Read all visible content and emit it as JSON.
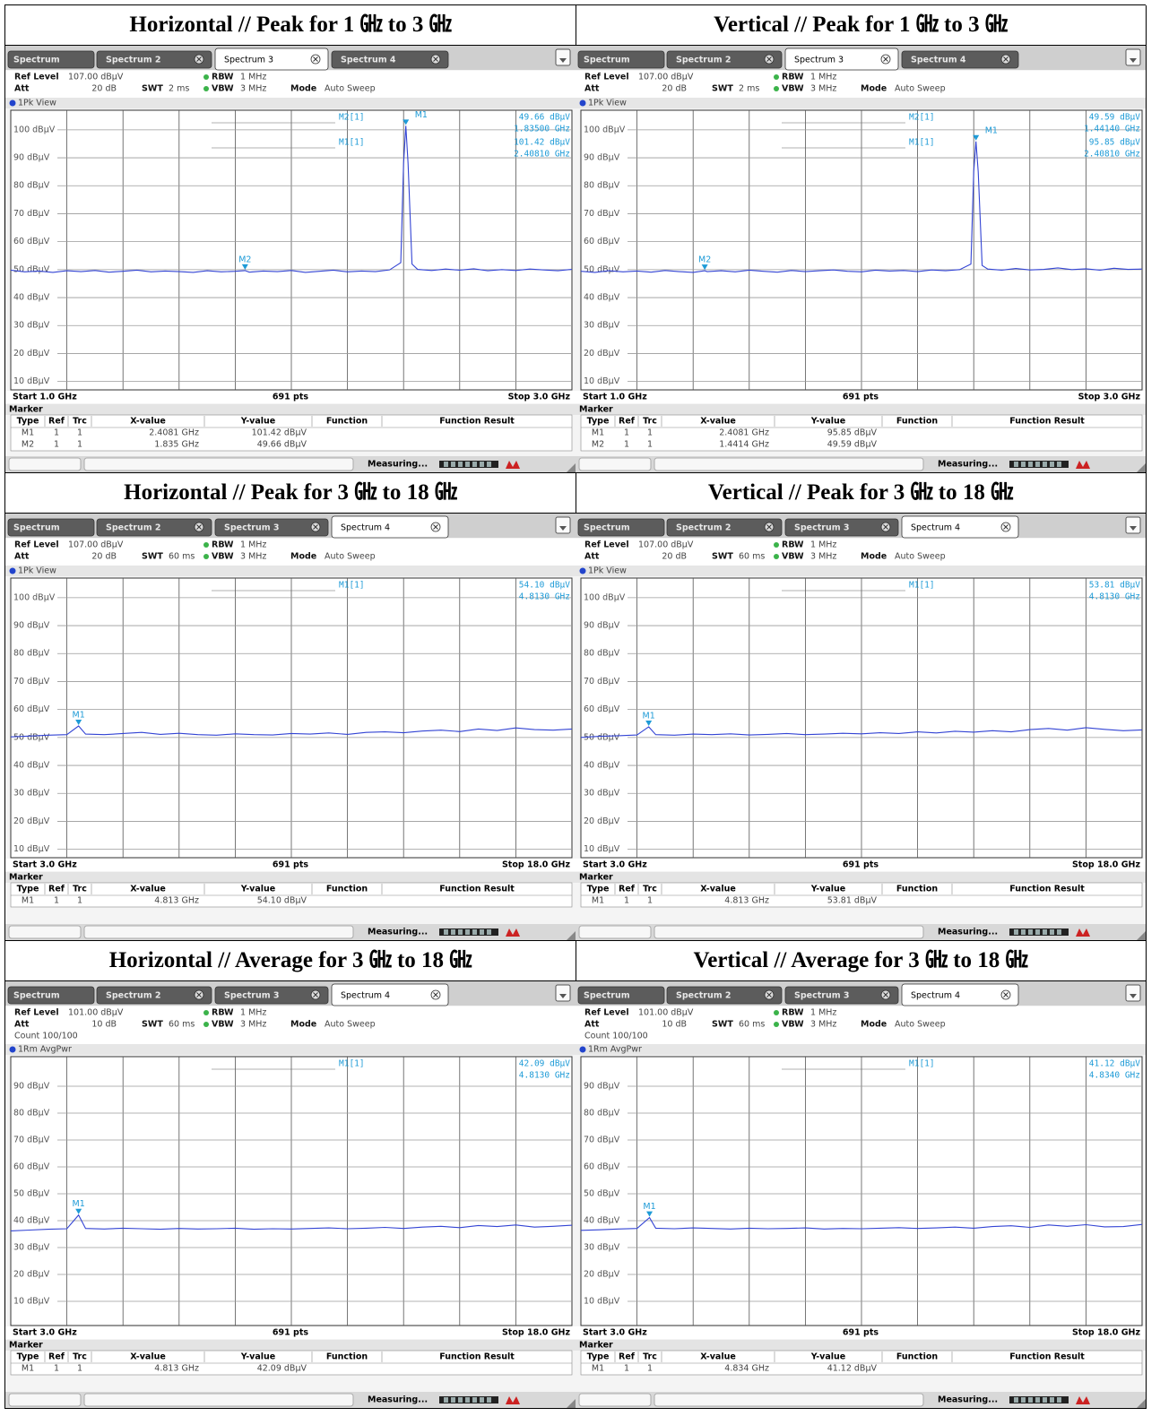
{
  "ui": {
    "tabs": [
      "Spectrum",
      "Spectrum 2",
      "Spectrum 3",
      "Spectrum 4"
    ],
    "ref_level": "Ref Level",
    "att": "Att",
    "swt": "SWT",
    "rbw": "RBW",
    "vbw": "VBW",
    "mode": "Mode",
    "marker": "Marker",
    "table_headers": [
      "Type",
      "Ref",
      "Trc",
      "X-value",
      "Y-value",
      "Function",
      "Function Result"
    ],
    "status": "Measuring..."
  },
  "chart_data": [
    {
      "type": "line",
      "title": "Horizontal // Peak for 1 ㎓ to 3 ㎓",
      "active_tab": 2,
      "ref_level": "107.00 dBµV",
      "att": "20 dB",
      "swt": "2 ms",
      "rbw": "1 MHz",
      "vbw": "3 MHz",
      "mode": "Auto Sweep",
      "trace_label": "1Pk View",
      "start_label": "Start 1.0 GHz",
      "points_label": "691 pts",
      "stop_label": "Stop 3.0 GHz",
      "xlim": [
        1,
        3
      ],
      "ylim": [
        7,
        107
      ],
      "yticks": [
        {
          "value": 100,
          "label": "100 dBµV"
        },
        {
          "value": 90,
          "label": "90 dBµV"
        },
        {
          "value": 80,
          "label": "80 dBµV"
        },
        {
          "value": 70,
          "label": "70 dBµV"
        },
        {
          "value": 60,
          "label": "60 dBµV"
        },
        {
          "value": 50,
          "label": "50 dBµV"
        },
        {
          "value": 40,
          "label": "40 dBµV"
        },
        {
          "value": 30,
          "label": "30 dBµV"
        },
        {
          "value": 20,
          "label": "20 dBµV"
        },
        {
          "value": 10,
          "label": "10 dBµV"
        }
      ],
      "color": "#3344d4",
      "x": [
        1.0,
        1.05,
        1.1,
        1.15,
        1.2,
        1.25,
        1.3,
        1.35,
        1.4,
        1.45,
        1.5,
        1.55,
        1.6,
        1.65,
        1.7,
        1.75,
        1.8,
        1.835,
        1.85,
        1.9,
        1.95,
        2.0,
        2.05,
        2.1,
        2.15,
        2.2,
        2.25,
        2.3,
        2.35,
        2.39,
        2.4,
        2.408,
        2.416,
        2.43,
        2.45,
        2.5,
        2.55,
        2.6,
        2.65,
        2.7,
        2.75,
        2.8,
        2.85,
        2.9,
        2.95,
        3.0
      ],
      "values": [
        49.8,
        49.2,
        49.5,
        49.0,
        49.6,
        49.3,
        49.7,
        49.1,
        49.4,
        49.8,
        49.2,
        49.5,
        49.3,
        49.0,
        49.6,
        49.2,
        49.4,
        49.66,
        49.1,
        49.5,
        49.3,
        49.7,
        49.0,
        49.4,
        49.8,
        49.2,
        49.5,
        49.3,
        49.9,
        52.5,
        88.0,
        101.42,
        88.0,
        52.0,
        50.1,
        49.7,
        50.2,
        49.8,
        50.3,
        49.6,
        50.0,
        49.7,
        50.2,
        49.9,
        49.6,
        50.1
      ],
      "markers": {
        "names": [
          "M1",
          "M2"
        ],
        "readout_names": [
          "M1[1]",
          "M2[1]"
        ],
        "x": [
          2.4081,
          1.835
        ],
        "values": [
          101.42,
          49.66
        ],
        "value_labels": [
          "101.42 dBµV",
          "49.66 dBµV"
        ],
        "x_labels": [
          "2.40810 GHz",
          "1.83500 GHz"
        ]
      },
      "marker_table": {
        "rows": [
          [
            "M1",
            "1",
            "1",
            "2.4081 GHz",
            "101.42 dBµV"
          ],
          [
            "M2",
            "1",
            "1",
            "1.835 GHz",
            "49.66 dBµV"
          ]
        ]
      }
    },
    {
      "type": "line",
      "title": "Vertical // Peak for 1 ㎓ to 3 ㎓",
      "active_tab": 2,
      "ref_level": "107.00 dBµV",
      "att": "20 dB",
      "swt": "2 ms",
      "rbw": "1 MHz",
      "vbw": "3 MHz",
      "mode": "Auto Sweep",
      "trace_label": "1Pk View",
      "start_label": "Start 1.0 GHz",
      "points_label": "691 pts",
      "stop_label": "Stop 3.0 GHz",
      "xlim": [
        1,
        3
      ],
      "ylim": [
        7,
        107
      ],
      "yticks": [
        {
          "value": 100,
          "label": "100 dBµV"
        },
        {
          "value": 90,
          "label": "90 dBµV"
        },
        {
          "value": 80,
          "label": "80 dBµV"
        },
        {
          "value": 70,
          "label": "70 dBµV"
        },
        {
          "value": 60,
          "label": "60 dBµV"
        },
        {
          "value": 50,
          "label": "50 dBµV"
        },
        {
          "value": 40,
          "label": "40 dBµV"
        },
        {
          "value": 30,
          "label": "30 dBµV"
        },
        {
          "value": 20,
          "label": "20 dBµV"
        },
        {
          "value": 10,
          "label": "10 dBµV"
        }
      ],
      "color": "#3344d4",
      "x": [
        1.0,
        1.05,
        1.1,
        1.15,
        1.2,
        1.25,
        1.3,
        1.35,
        1.4,
        1.4414,
        1.45,
        1.5,
        1.55,
        1.6,
        1.65,
        1.7,
        1.75,
        1.8,
        1.85,
        1.9,
        1.95,
        2.0,
        2.05,
        2.1,
        2.15,
        2.2,
        2.25,
        2.3,
        2.35,
        2.39,
        2.4,
        2.408,
        2.416,
        2.43,
        2.45,
        2.5,
        2.55,
        2.6,
        2.65,
        2.7,
        2.75,
        2.8,
        2.85,
        2.9,
        2.95,
        3.0
      ],
      "values": [
        49.4,
        49.0,
        49.6,
        49.2,
        49.5,
        49.1,
        49.7,
        49.3,
        49.0,
        49.59,
        49.3,
        49.6,
        49.2,
        49.8,
        49.4,
        49.1,
        49.7,
        49.3,
        49.6,
        49.9,
        49.4,
        49.2,
        49.8,
        49.5,
        49.7,
        49.3,
        49.9,
        49.6,
        50.0,
        52.0,
        85.0,
        95.85,
        85.0,
        51.5,
        50.2,
        49.8,
        50.4,
        49.9,
        50.1,
        50.6,
        50.0,
        50.3,
        49.8,
        50.5,
        50.1,
        50.2
      ],
      "markers": {
        "names": [
          "M1",
          "M2"
        ],
        "readout_names": [
          "M1[1]",
          "M2[1]"
        ],
        "x": [
          2.4081,
          1.4414
        ],
        "values": [
          95.85,
          49.59
        ],
        "value_labels": [
          "95.85 dBµV",
          "49.59 dBµV"
        ],
        "x_labels": [
          "2.40810 GHz",
          "1.44140 GHz"
        ]
      },
      "marker_table": {
        "rows": [
          [
            "M1",
            "1",
            "1",
            "2.4081 GHz",
            "95.85 dBµV"
          ],
          [
            "M2",
            "1",
            "1",
            "1.4414 GHz",
            "49.59 dBµV"
          ]
        ]
      }
    },
    {
      "type": "line",
      "title": "Horizontal // Peak for 3 ㎓ to 18 ㎓",
      "active_tab": 3,
      "ref_level": "107.00 dBµV",
      "att": "20 dB",
      "swt": "60 ms",
      "rbw": "1 MHz",
      "vbw": "3 MHz",
      "mode": "Auto Sweep",
      "trace_label": "1Pk View",
      "start_label": "Start 3.0 GHz",
      "points_label": "691 pts",
      "stop_label": "Stop 18.0 GHz",
      "xlim": [
        3,
        18
      ],
      "ylim": [
        7,
        107
      ],
      "yticks": [
        {
          "value": 100,
          "label": "100 dBµV"
        },
        {
          "value": 90,
          "label": "90 dBµV"
        },
        {
          "value": 80,
          "label": "80 dBµV"
        },
        {
          "value": 70,
          "label": "70 dBµV"
        },
        {
          "value": 60,
          "label": "60 dBµV"
        },
        {
          "value": 50,
          "label": "50 dBµV"
        },
        {
          "value": 40,
          "label": "40 dBµV"
        },
        {
          "value": 30,
          "label": "30 dBµV"
        },
        {
          "value": 20,
          "label": "20 dBµV"
        },
        {
          "value": 10,
          "label": "10 dBµV"
        }
      ],
      "color": "#3344d4",
      "x": [
        3,
        3.5,
        4,
        4.5,
        4.813,
        5,
        5.5,
        6,
        6.5,
        7,
        7.5,
        8,
        8.5,
        9,
        9.5,
        10,
        10.5,
        11,
        11.5,
        12,
        12.5,
        13,
        13.5,
        14,
        14.5,
        15,
        15.5,
        16,
        16.5,
        17,
        17.5,
        18
      ],
      "values": [
        50.2,
        50.5,
        50.8,
        51.0,
        54.1,
        51.2,
        51.0,
        51.4,
        51.8,
        51.1,
        51.5,
        51.0,
        50.8,
        51.3,
        51.0,
        50.9,
        51.4,
        51.2,
        51.6,
        51.1,
        51.8,
        52.0,
        51.7,
        52.3,
        52.6,
        52.1,
        53.0,
        52.5,
        53.4,
        52.8,
        52.6,
        53.0
      ],
      "markers": {
        "names": [
          "M1"
        ],
        "readout_names": [
          "M1[1]"
        ],
        "x": [
          4.813
        ],
        "values": [
          54.1
        ],
        "value_labels": [
          "54.10 dBµV"
        ],
        "x_labels": [
          "4.8130 GHz"
        ]
      },
      "marker_table": {
        "rows": [
          [
            "M1",
            "1",
            "1",
            "4.813 GHz",
            "54.10 dBµV"
          ]
        ]
      }
    },
    {
      "type": "line",
      "title": "Vertical // Peak for 3 ㎓ to 18 ㎓",
      "active_tab": 3,
      "ref_level": "107.00 dBµV",
      "att": "20 dB",
      "swt": "60 ms",
      "rbw": "1 MHz",
      "vbw": "3 MHz",
      "mode": "Auto Sweep",
      "trace_label": "1Pk View",
      "start_label": "Start 3.0 GHz",
      "points_label": "691 pts",
      "stop_label": "Stop 18.0 GHz",
      "xlim": [
        3,
        18
      ],
      "ylim": [
        7,
        107
      ],
      "yticks": [
        {
          "value": 100,
          "label": "100 dBµV"
        },
        {
          "value": 90,
          "label": "90 dBµV"
        },
        {
          "value": 80,
          "label": "80 dBµV"
        },
        {
          "value": 70,
          "label": "70 dBµV"
        },
        {
          "value": 60,
          "label": "60 dBµV"
        },
        {
          "value": 50,
          "label": "50 dBµV"
        },
        {
          "value": 40,
          "label": "40 dBµV"
        },
        {
          "value": 30,
          "label": "30 dBµV"
        },
        {
          "value": 20,
          "label": "20 dBµV"
        },
        {
          "value": 10,
          "label": "10 dBµV"
        }
      ],
      "color": "#3344d4",
      "x": [
        3,
        3.5,
        4,
        4.5,
        4.813,
        5,
        5.5,
        6,
        6.5,
        7,
        7.5,
        8,
        8.5,
        9,
        9.5,
        10,
        10.5,
        11,
        11.5,
        12,
        12.5,
        13,
        13.5,
        14,
        14.5,
        15,
        15.5,
        16,
        16.5,
        17,
        17.5,
        18
      ],
      "values": [
        50.0,
        50.4,
        50.6,
        50.9,
        53.81,
        51.0,
        50.8,
        51.2,
        51.0,
        51.3,
        50.9,
        51.1,
        51.4,
        51.0,
        51.2,
        51.5,
        51.3,
        51.7,
        51.4,
        52.0,
        51.6,
        52.2,
        51.9,
        52.4,
        52.0,
        52.8,
        53.2,
        52.6,
        53.5,
        52.9,
        52.4,
        52.7
      ],
      "markers": {
        "names": [
          "M1"
        ],
        "readout_names": [
          "M1[1]"
        ],
        "x": [
          4.813
        ],
        "values": [
          53.81
        ],
        "value_labels": [
          "53.81 dBµV"
        ],
        "x_labels": [
          "4.8130 GHz"
        ]
      },
      "marker_table": {
        "rows": [
          [
            "M1",
            "1",
            "1",
            "4.813 GHz",
            "53.81 dBµV"
          ]
        ]
      }
    },
    {
      "type": "line",
      "title": "Horizontal // Average for 3 ㎓ to 18 ㎓",
      "active_tab": 3,
      "ref_level": "101.00 dBµV",
      "att": "10 dB",
      "swt": "60 ms",
      "rbw": "1 MHz",
      "vbw": "3 MHz",
      "mode": "Auto Sweep",
      "count": "Count 100/100",
      "trace_label": "1Rm AvgPwr",
      "start_label": "Start 3.0 GHz",
      "points_label": "691 pts",
      "stop_label": "Stop 18.0 GHz",
      "xlim": [
        3,
        18
      ],
      "ylim": [
        1,
        101
      ],
      "yticks": [
        {
          "value": 90,
          "label": "90 dBµV"
        },
        {
          "value": 80,
          "label": "80 dBµV"
        },
        {
          "value": 70,
          "label": "70 dBµV"
        },
        {
          "value": 60,
          "label": "60 dBµV"
        },
        {
          "value": 50,
          "label": "50 dBµV"
        },
        {
          "value": 40,
          "label": "40 dBµV"
        },
        {
          "value": 30,
          "label": "30 dBµV"
        },
        {
          "value": 20,
          "label": "20 dBµV"
        },
        {
          "value": 10,
          "label": "10 dBµV"
        }
      ],
      "color": "#3344d4",
      "x": [
        3,
        3.5,
        4,
        4.5,
        4.813,
        5,
        5.5,
        6,
        6.5,
        7,
        7.5,
        8,
        8.5,
        9,
        9.5,
        10,
        10.5,
        11,
        11.5,
        12,
        12.5,
        13,
        13.5,
        14,
        14.5,
        15,
        15.5,
        16,
        16.5,
        17,
        17.5,
        18
      ],
      "values": [
        36.2,
        36.5,
        36.8,
        37.0,
        42.09,
        37.1,
        36.9,
        37.2,
        37.0,
        36.8,
        37.1,
        36.9,
        37.0,
        37.2,
        36.8,
        37.0,
        36.9,
        37.1,
        37.3,
        37.0,
        37.2,
        37.5,
        37.1,
        37.6,
        37.9,
        37.4,
        38.2,
        37.8,
        38.4,
        37.6,
        37.9,
        38.3
      ],
      "markers": {
        "names": [
          "M1"
        ],
        "readout_names": [
          "M1[1]"
        ],
        "x": [
          4.813
        ],
        "values": [
          42.09
        ],
        "value_labels": [
          "42.09 dBµV"
        ],
        "x_labels": [
          "4.8130 GHz"
        ]
      },
      "marker_table": {
        "rows": [
          [
            "M1",
            "1",
            "1",
            "4.813 GHz",
            "42.09 dBµV"
          ]
        ]
      }
    },
    {
      "type": "line",
      "title": "Vertical // Average for 3 ㎓ to 18 ㎓",
      "active_tab": 3,
      "ref_level": "101.00 dBµV",
      "att": "10 dB",
      "swt": "60 ms",
      "rbw": "1 MHz",
      "vbw": "3 MHz",
      "mode": "Auto Sweep",
      "count": "Count 100/100",
      "trace_label": "1Rm AvgPwr",
      "start_label": "Start 3.0 GHz",
      "points_label": "691 pts",
      "stop_label": "Stop 18.0 GHz",
      "xlim": [
        3,
        18
      ],
      "ylim": [
        1,
        101
      ],
      "yticks": [
        {
          "value": 90,
          "label": "90 dBµV"
        },
        {
          "value": 80,
          "label": "80 dBµV"
        },
        {
          "value": 70,
          "label": "70 dBµV"
        },
        {
          "value": 60,
          "label": "60 dBµV"
        },
        {
          "value": 50,
          "label": "50 dBµV"
        },
        {
          "value": 40,
          "label": "40 dBµV"
        },
        {
          "value": 30,
          "label": "30 dBµV"
        },
        {
          "value": 20,
          "label": "20 dBµV"
        },
        {
          "value": 10,
          "label": "10 dBµV"
        }
      ],
      "color": "#3344d4",
      "x": [
        3,
        3.5,
        4,
        4.5,
        4.834,
        5,
        5.5,
        6,
        6.5,
        7,
        7.5,
        8,
        8.5,
        9,
        9.5,
        10,
        10.5,
        11,
        11.5,
        12,
        12.5,
        13,
        13.5,
        14,
        14.5,
        15,
        15.5,
        16,
        16.5,
        17,
        17.5,
        18
      ],
      "values": [
        36.4,
        36.6,
        36.9,
        37.1,
        41.12,
        37.2,
        37.0,
        37.3,
        37.1,
        36.9,
        37.2,
        37.0,
        37.1,
        37.3,
        36.9,
        37.1,
        37.0,
        37.2,
        37.4,
        37.1,
        37.3,
        37.6,
        37.2,
        37.8,
        38.1,
        37.5,
        38.4,
        37.9,
        38.5,
        37.7,
        37.8,
        38.6
      ],
      "markers": {
        "names": [
          "M1"
        ],
        "readout_names": [
          "M1[1]"
        ],
        "x": [
          4.834
        ],
        "values": [
          41.12
        ],
        "value_labels": [
          "41.12 dBµV"
        ],
        "x_labels": [
          "4.8340 GHz"
        ]
      },
      "marker_table": {
        "rows": [
          [
            "M1",
            "1",
            "1",
            "4.834 GHz",
            "41.12 dBµV"
          ]
        ]
      }
    }
  ]
}
